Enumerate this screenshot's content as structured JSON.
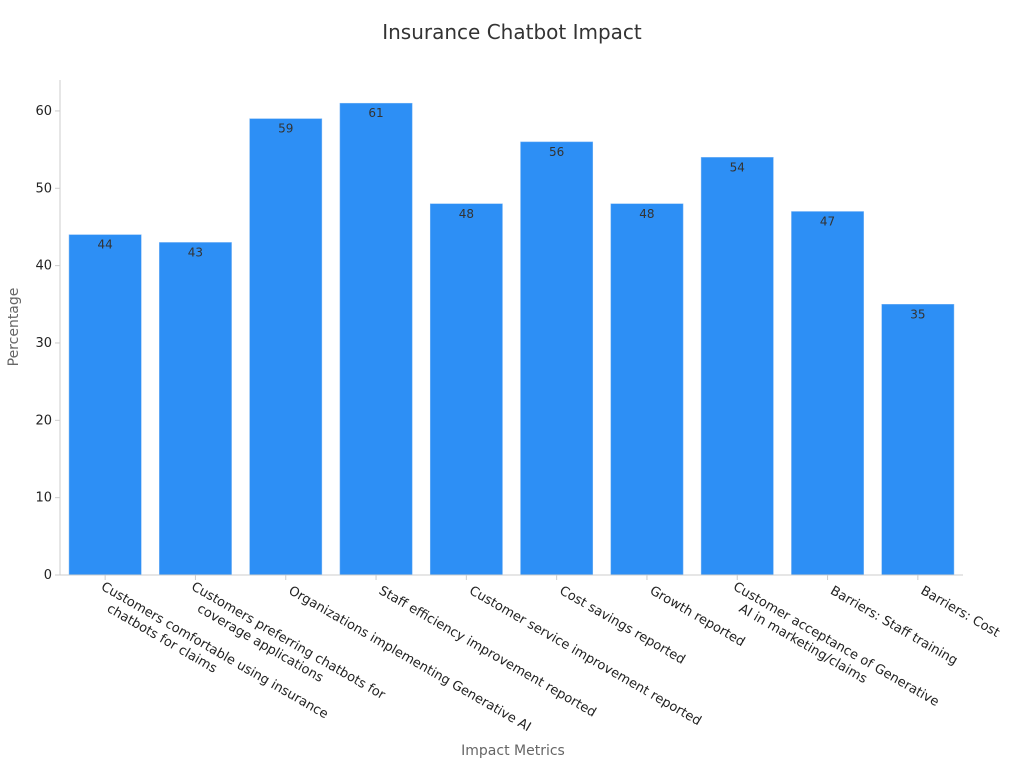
{
  "chart_data": {
    "type": "bar",
    "title": "Insurance Chatbot Impact",
    "xlabel": "Impact Metrics",
    "ylabel": "Percentage",
    "categories": [
      [
        "Customers comfortable using insurance",
        "chatbots for claims"
      ],
      [
        "Customers preferring chatbots for",
        "coverage applications"
      ],
      [
        "Organizations implementing Generative AI"
      ],
      [
        "Staff efficiency improvement reported"
      ],
      [
        "Customer service improvement reported"
      ],
      [
        "Cost savings reported"
      ],
      [
        "Growth reported"
      ],
      [
        "Customer acceptance of Generative",
        "AI in marketing/claims"
      ],
      [
        "Barriers: Staff training"
      ],
      [
        "Barriers: Cost"
      ]
    ],
    "values": [
      44,
      43,
      59,
      61,
      48,
      56,
      48,
      54,
      47,
      35
    ],
    "ylim": [
      0,
      64
    ],
    "yticks": [
      0,
      10,
      20,
      30,
      40,
      50,
      60
    ],
    "bar_color": "#2d8ff5",
    "grid": false,
    "data_labels": true
  }
}
